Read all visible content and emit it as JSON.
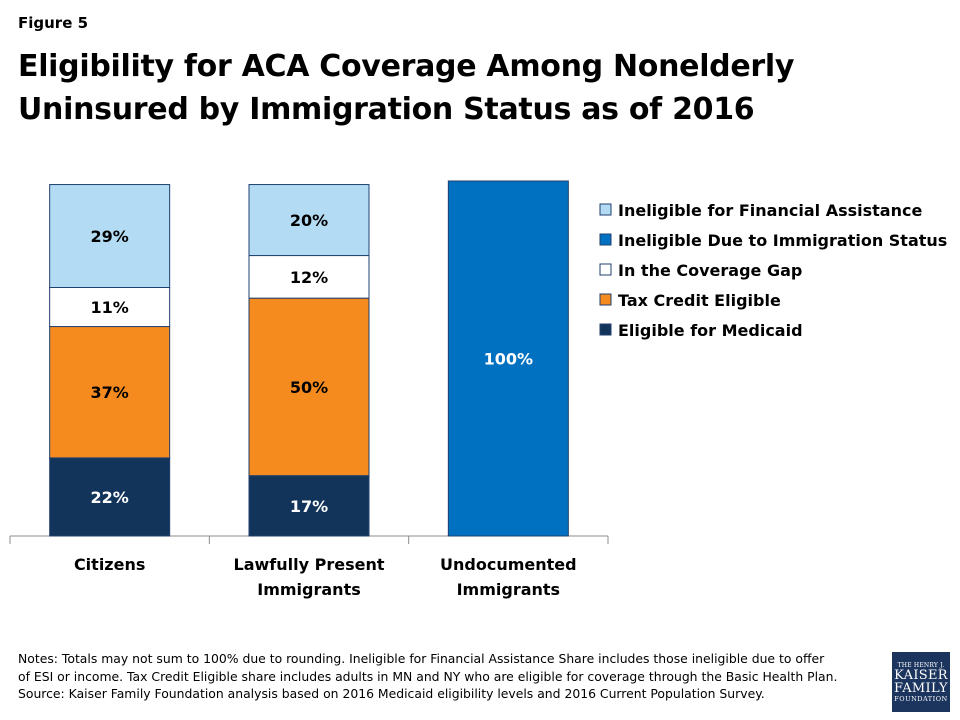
{
  "figure_label": "Figure 5",
  "title": "Eligibility for ACA Coverage Among Nonelderly Uninsured by Immigration Status as of 2016",
  "notes": [
    "Notes: Totals may not sum to 100% due to rounding. Ineligible for Financial Assistance Share includes those ineligible due to offer",
    "of ESI or income. Tax Credit Eligible share includes adults in MN and NY who are eligible for coverage through the Basic Health Plan.",
    "Source: Kaiser Family Foundation analysis based on 2016 Medicaid eligibility levels and 2016 Current Population Survey."
  ],
  "logo": {
    "line1": "THE HENRY J.",
    "line2": "KAISER",
    "line3": "FAMILY",
    "line4": "FOUNDATION"
  },
  "chart_data": {
    "type": "bar",
    "stacked": true,
    "normalized_percent": true,
    "categories": [
      [
        "Citizens"
      ],
      [
        "Lawfully Present",
        "Immigrants"
      ],
      [
        "Undocumented",
        "Immigrants"
      ]
    ],
    "ylim": [
      0,
      100
    ],
    "series": [
      {
        "name": "Eligible for Medicaid",
        "color": "#13345a",
        "values": [
          22,
          17,
          0
        ],
        "labels": [
          "22%",
          "17%",
          ""
        ]
      },
      {
        "name": "Tax Credit Eligible",
        "color": "#f58a1f",
        "values": [
          37,
          50,
          0
        ],
        "labels": [
          "37%",
          "50%",
          ""
        ]
      },
      {
        "name": "In the Coverage Gap",
        "color": "#ffffff",
        "values": [
          11,
          12,
          0
        ],
        "labels": [
          "11%",
          "12%",
          ""
        ]
      },
      {
        "name": "Ineligible Due to Immigration Status",
        "color": "#0070c0",
        "values": [
          0,
          0,
          100
        ],
        "labels": [
          "",
          "",
          "100%"
        ]
      },
      {
        "name": "Ineligible for Financial Assistance",
        "color": "#b3dcf4",
        "values": [
          29,
          20,
          0
        ],
        "labels": [
          "29%",
          "20%",
          ""
        ]
      }
    ],
    "legend_order": [
      "Ineligible for Financial Assistance",
      "Ineligible Due to Immigration Status",
      "In the Coverage Gap",
      "Tax Credit Eligible",
      "Eligible for Medicaid"
    ],
    "legend_position": "right",
    "label_color_on_dark": "#ffffff",
    "label_color_on_light": "#000000"
  }
}
